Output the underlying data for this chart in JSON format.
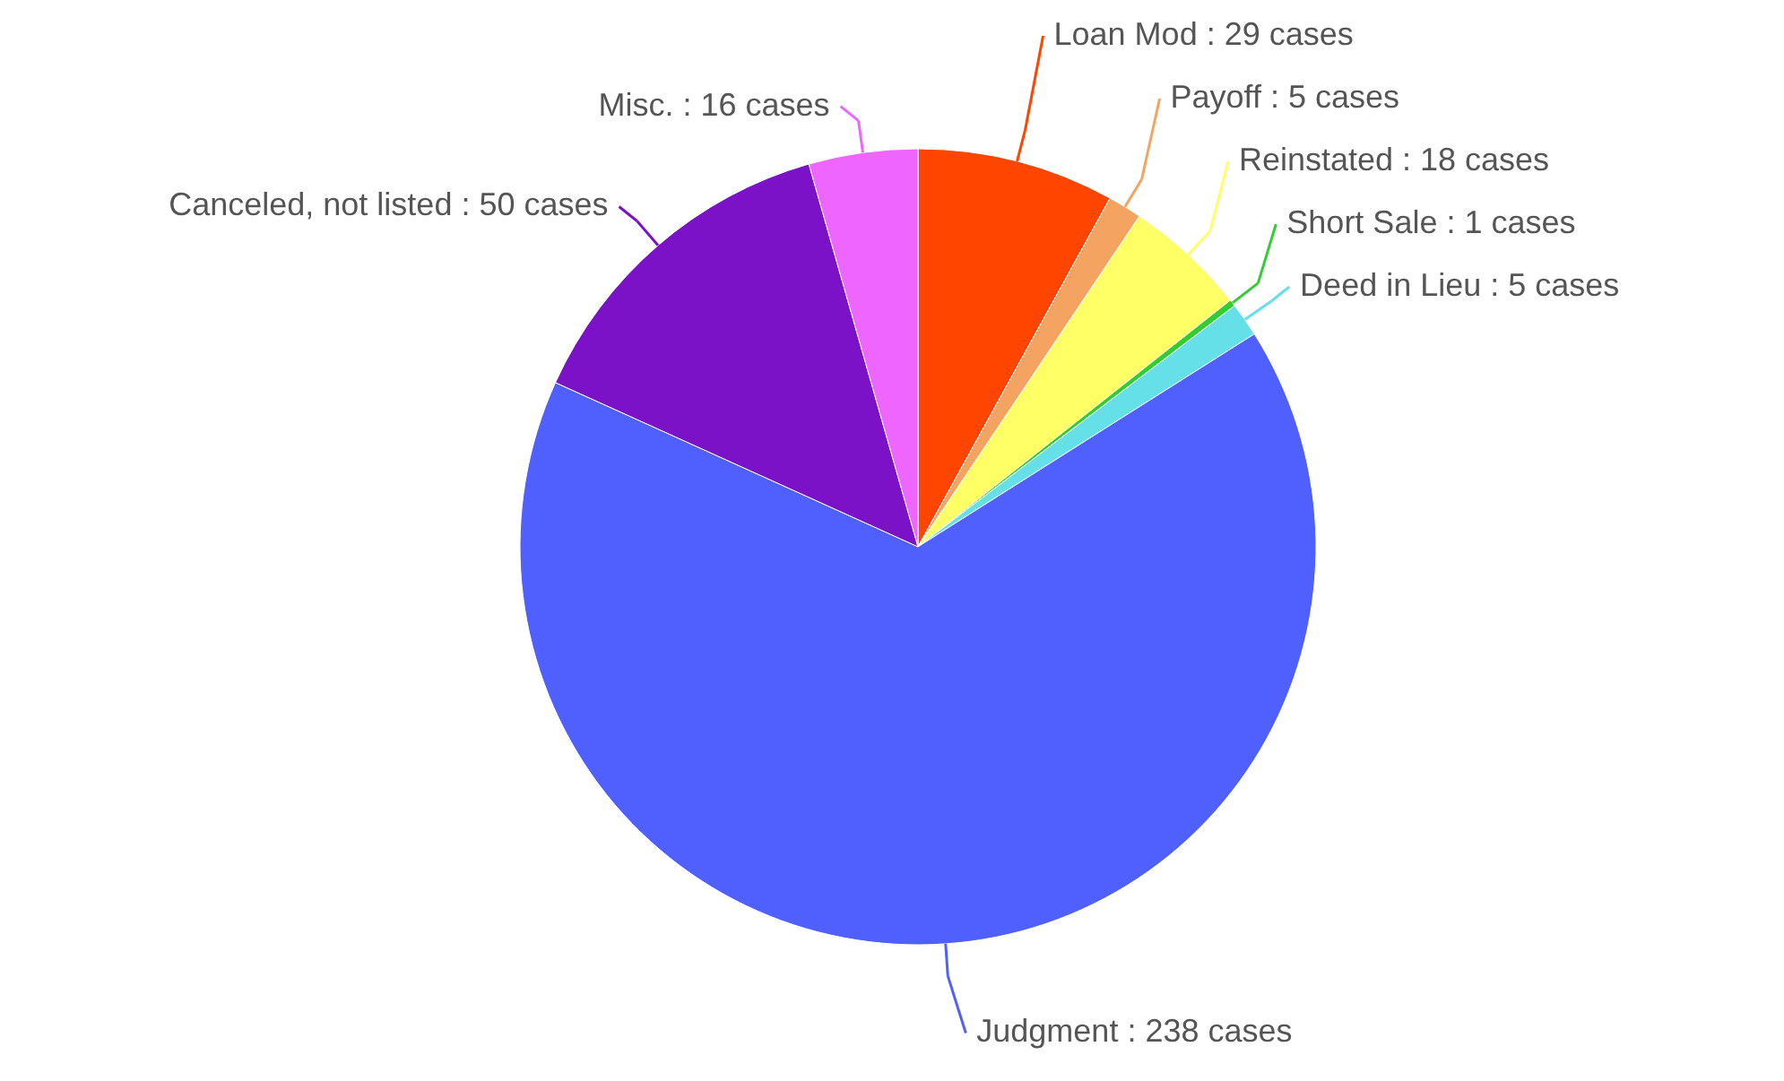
{
  "chart_data": {
    "type": "pie",
    "categories": [
      "Loan Mod",
      "Payoff",
      "Reinstated",
      "Short Sale",
      "Deed in Lieu",
      "Judgment",
      "Canceled, not listed",
      "Misc."
    ],
    "values": [
      29,
      5,
      18,
      1,
      5,
      238,
      50,
      16
    ],
    "colors": [
      "#ff4500",
      "#f4a460",
      "#ffff66",
      "#32cd32",
      "#66e0e8",
      "#5060ff",
      "#7b12c8",
      "#ee66ff"
    ],
    "value_labels": [
      "29 cases",
      "5 cases",
      "18 cases",
      "1 cases",
      "5 cases",
      "238 cases",
      "50 cases",
      "16 cases"
    ]
  }
}
